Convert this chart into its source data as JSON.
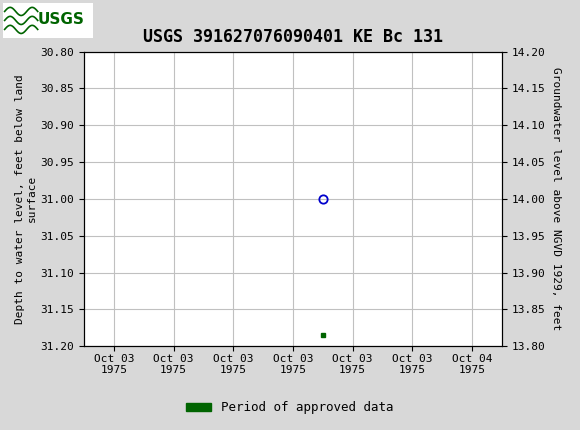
{
  "title": "USGS 391627076090401 KE Bc 131",
  "left_ylabel": "Depth to water level, feet below land\nsurface",
  "right_ylabel": "Groundwater level above NGVD 1929, feet",
  "ylim_left_top": 30.8,
  "ylim_left_bottom": 31.2,
  "ylim_right_top": 14.2,
  "ylim_right_bottom": 13.8,
  "left_yticks": [
    30.8,
    30.85,
    30.9,
    30.95,
    31.0,
    31.05,
    31.1,
    31.15,
    31.2
  ],
  "right_yticks": [
    14.2,
    14.15,
    14.1,
    14.05,
    14.0,
    13.95,
    13.9,
    13.85,
    13.8
  ],
  "circle_point_x": 3.5,
  "circle_point_y": 31.0,
  "square_point_x": 3.5,
  "square_point_y": 31.185,
  "circle_color": "#0000cc",
  "square_color": "#006400",
  "plot_bg_color": "#ffffff",
  "fig_bg_color": "#d8d8d8",
  "header_color": "#006400",
  "grid_color": "#c0c0c0",
  "xtick_labels": [
    "Oct 03\n1975",
    "Oct 03\n1975",
    "Oct 03\n1975",
    "Oct 03\n1975",
    "Oct 03\n1975",
    "Oct 03\n1975",
    "Oct 04\n1975"
  ],
  "xtick_positions": [
    0,
    1,
    2,
    3,
    4,
    5,
    6
  ],
  "xlim_min": -0.5,
  "xlim_max": 6.5,
  "legend_label": "Period of approved data",
  "legend_color": "#006400",
  "font_family": "monospace",
  "title_fontsize": 12,
  "axis_fontsize": 8,
  "tick_fontsize": 8,
  "legend_fontsize": 9
}
